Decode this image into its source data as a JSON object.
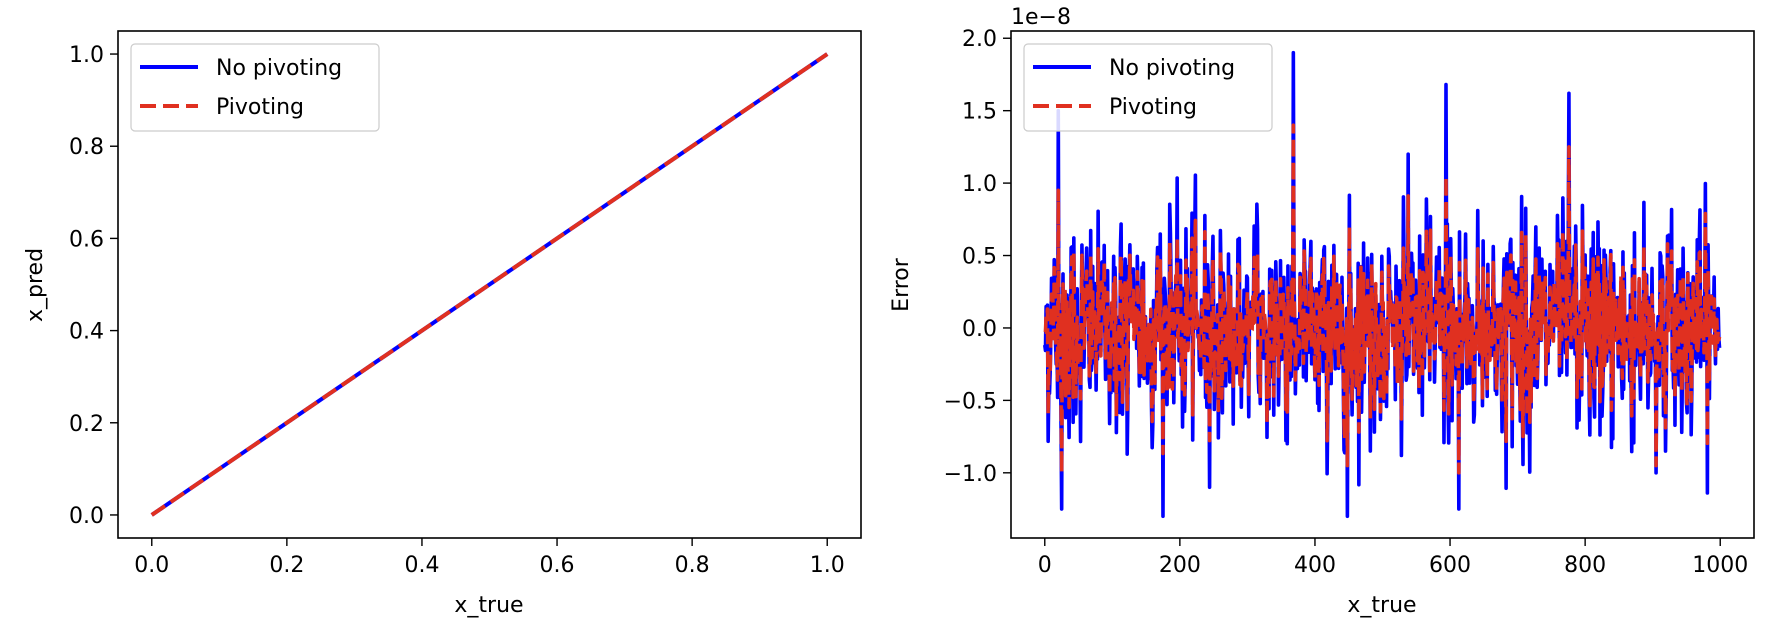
{
  "chart_data": [
    {
      "type": "line",
      "xlabel": "x_true",
      "ylabel": "x_pred",
      "xlim": [
        -0.05,
        1.05
      ],
      "ylim": [
        -0.05,
        1.05
      ],
      "xticks": [
        "0.0",
        "0.2",
        "0.4",
        "0.6",
        "0.8",
        "1.0"
      ],
      "yticks": [
        "0.0",
        "0.2",
        "0.4",
        "0.6",
        "0.8",
        "1.0"
      ],
      "legend_position": "top-left",
      "series": [
        {
          "name": "No pivoting",
          "color": "#0000ff",
          "style": "solid",
          "x": [
            0,
            1
          ],
          "y": [
            0,
            1
          ]
        },
        {
          "name": "Pivoting",
          "color": "#e03020",
          "style": "dashed",
          "x": [
            0,
            1
          ],
          "y": [
            0,
            1
          ]
        }
      ]
    },
    {
      "type": "line",
      "xlabel": "x_true",
      "ylabel": "Error",
      "offset_label": "1e−8",
      "xlim": [
        -50,
        1050
      ],
      "ylim": [
        -1.45,
        2.05
      ],
      "xticks": [
        "0",
        "200",
        "400",
        "600",
        "800",
        "1000"
      ],
      "yticks": [
        "−1.0",
        "−0.5",
        "0.0",
        "0.5",
        "1.0",
        "1.5",
        "2.0"
      ],
      "legend_position": "top-left",
      "series": [
        {
          "name": "No pivoting",
          "color": "#0000ff",
          "style": "solid",
          "n_points": 1000,
          "y_range_approx": [
            -1.3,
            1.9
          ]
        },
        {
          "name": "Pivoting",
          "color": "#e03020",
          "style": "dashed",
          "n_points": 1000,
          "y_range_approx": [
            -1.0,
            1.4
          ]
        }
      ]
    }
  ]
}
